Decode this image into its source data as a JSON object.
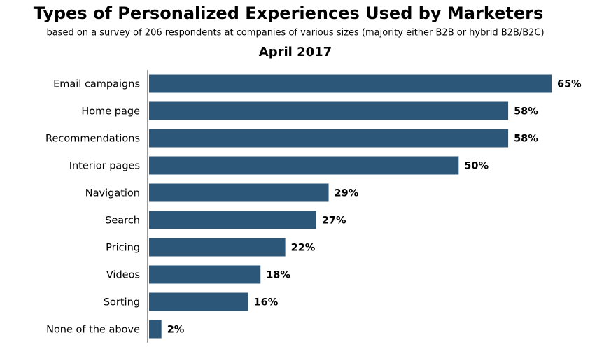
{
  "chart_data": {
    "type": "bar",
    "orientation": "horizontal",
    "title": "Types of Personalized Experiences Used by Marketers",
    "subtitle": "based on a survey of 206 respondents at companies of various sizes (majority either B2B or hybrid B2B/B2C)",
    "period": "April 2017",
    "categories": [
      "Email campaigns",
      "Home page",
      "Recommendations",
      "Interior pages",
      "Navigation",
      "Search",
      "Pricing",
      "Videos",
      "Sorting",
      "None of the above"
    ],
    "values": [
      65,
      58,
      58,
      50,
      29,
      27,
      22,
      18,
      16,
      2
    ],
    "value_labels": [
      "65%",
      "58%",
      "58%",
      "50%",
      "29%",
      "27%",
      "22%",
      "18%",
      "16%",
      "2%"
    ],
    "color": "#2c5778"
  }
}
